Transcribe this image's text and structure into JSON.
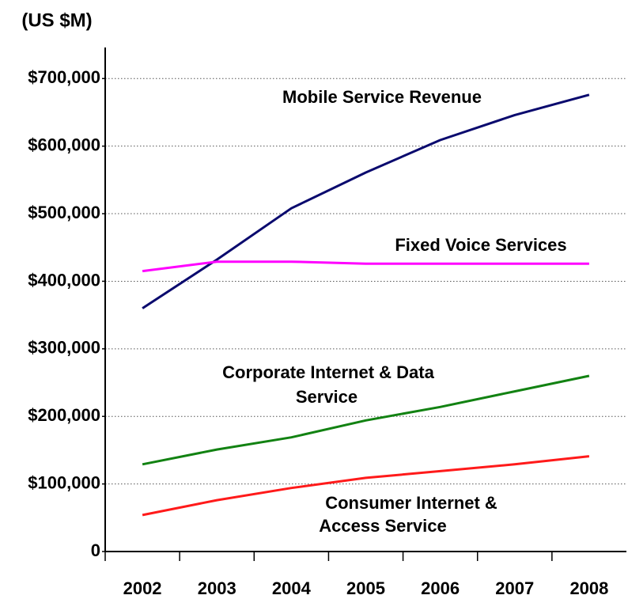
{
  "chart_data": {
    "type": "line",
    "y_axis_label": "(US $M)",
    "categories": [
      "2002",
      "2003",
      "2004",
      "2005",
      "2006",
      "2007",
      "2008"
    ],
    "series": [
      {
        "name": "Mobile Service Revenue",
        "color": "#0a0a6e",
        "values": [
          360000,
          432000,
          508000,
          561000,
          609000,
          646000,
          676000
        ]
      },
      {
        "name": "Fixed Voice Services",
        "color": "#ff00ff",
        "values": [
          415000,
          429000,
          429000,
          426000,
          426000,
          426000,
          426000
        ]
      },
      {
        "name": "Corporate Internet & Data Service",
        "color": "#128212",
        "values": [
          129000,
          151000,
          169000,
          194000,
          214000,
          237000,
          260000
        ]
      },
      {
        "name": "Consumer Internet & Access Service",
        "color": "#ff1a1a",
        "values": [
          54000,
          76000,
          94000,
          109000,
          119000,
          129000,
          141000
        ]
      }
    ],
    "annotations": [
      {
        "lines": [
          "Mobile Service Revenue"
        ]
      },
      {
        "lines": [
          "Fixed Voice Services"
        ]
      },
      {
        "lines": [
          "Corporate Internet & Data",
          "Service"
        ]
      },
      {
        "lines": [
          "Consumer Internet &",
          "Access Service"
        ]
      }
    ],
    "ylim": [
      0,
      746000
    ],
    "yticks": [
      0,
      {
        "value": 100000,
        "label": "$100,000"
      },
      {
        "value": 200000,
        "label": "$200,000"
      },
      {
        "value": 300000,
        "label": "$300,000"
      },
      {
        "value": 400000,
        "label": "$400,000"
      },
      {
        "value": 500000,
        "label": "$500,000"
      },
      {
        "value": 600000,
        "label": "$600,000"
      },
      {
        "value": 700000,
        "label": "$700,000"
      }
    ],
    "grid": true
  }
}
